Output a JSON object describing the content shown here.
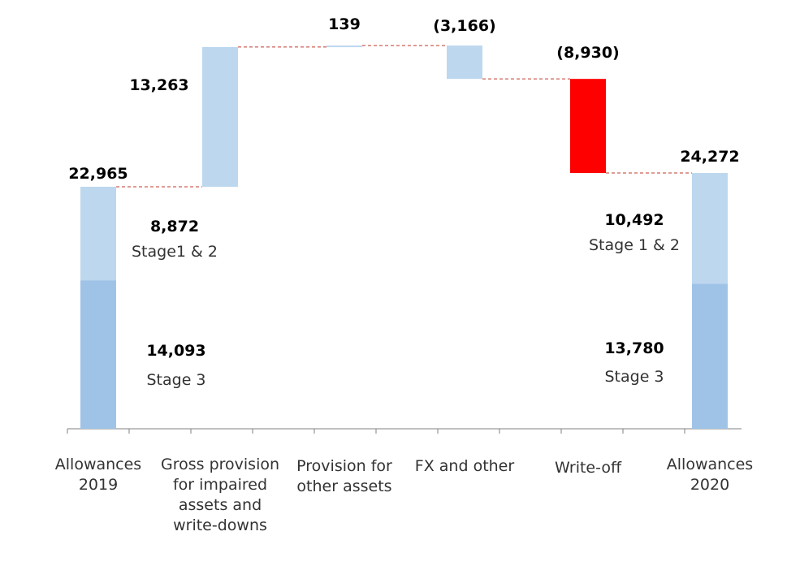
{
  "chart_data": {
    "type": "waterfall",
    "title": "",
    "xlabel": "",
    "ylabel": "",
    "ylim": [
      0,
      35000
    ],
    "grid": false,
    "legend": "none",
    "categories": [
      [
        "Allowances",
        "2019"
      ],
      [
        "Gross provision",
        "for impaired",
        "assets and",
        "write-downs"
      ],
      [
        "Provision for",
        "other assets"
      ],
      [
        "FX and other"
      ],
      [
        "Write-off"
      ],
      [
        "Allowances",
        "2020"
      ]
    ],
    "steps": [
      {
        "kind": "total",
        "label": "22,965",
        "value": 22965,
        "stack": [
          {
            "name": "Stage 3",
            "value": 14093,
            "label": "14,093"
          },
          {
            "name": "Stage1 & 2",
            "value": 8872,
            "label": "8,872"
          }
        ]
      },
      {
        "kind": "delta",
        "label": "13,263",
        "value": 13263
      },
      {
        "kind": "delta",
        "label": "139",
        "value": 139
      },
      {
        "kind": "delta",
        "label": "(3,166)",
        "value": -3166
      },
      {
        "kind": "delta",
        "label": "(8,930)",
        "value": -8930,
        "highlight": true
      },
      {
        "kind": "total",
        "label": "24,272",
        "value": 24272,
        "stack": [
          {
            "name": "Stage 3",
            "value": 13780,
            "label": "13,780"
          },
          {
            "name": "Stage 1 & 2",
            "value": 10492,
            "label": "10,492"
          }
        ]
      }
    ]
  },
  "colors": {
    "stage3": "#9fc3e7",
    "stage12": "#bdd7ee",
    "delta": "#bdd7ee",
    "highlight": "#ff0000",
    "connector": "#c0392b",
    "axis": "#808080"
  }
}
